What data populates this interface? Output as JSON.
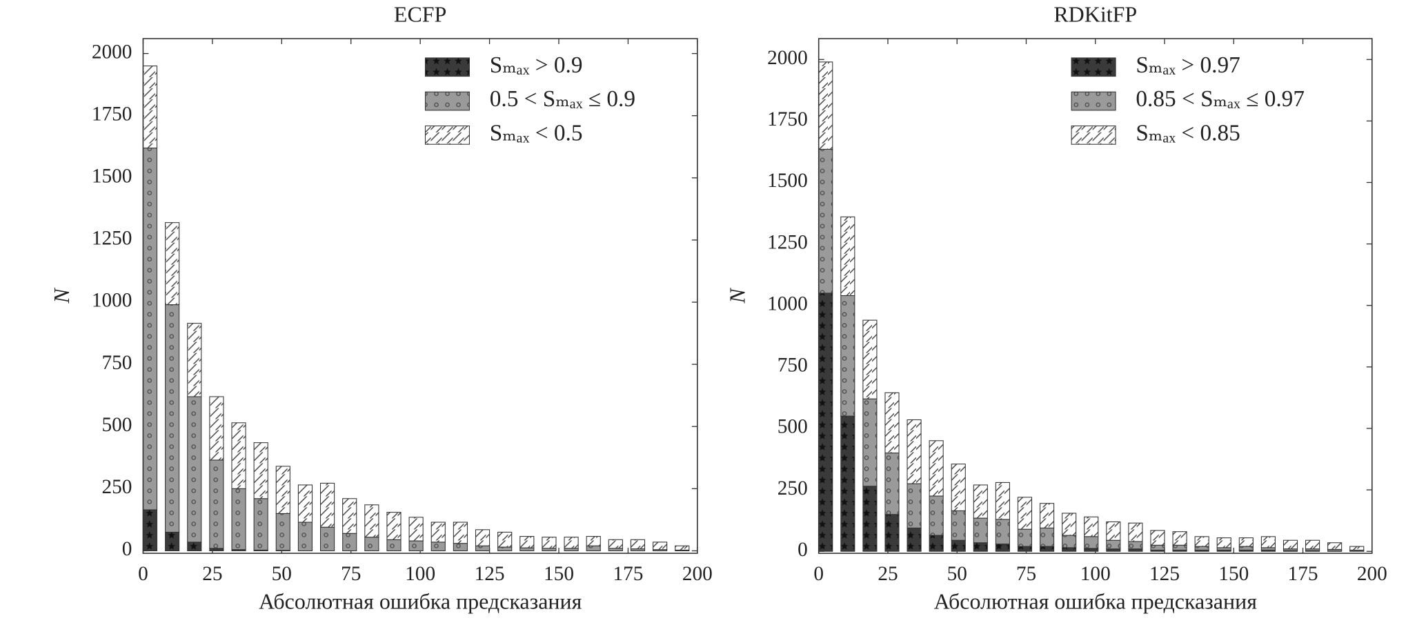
{
  "chart_data": [
    {
      "type": "bar",
      "stacked": true,
      "title": "ECFP",
      "xlabel": "Абсолютная ошибка предсказания",
      "ylabel": "N",
      "x": [
        0,
        8,
        16,
        24,
        32,
        40,
        48,
        56,
        64,
        72,
        80,
        88,
        96,
        104,
        112,
        120,
        128,
        136,
        144,
        152,
        160,
        168,
        176,
        184,
        192
      ],
      "series": [
        {
          "name": "Sₘₐₓ > 0.9",
          "color": "#3a3a3a",
          "values": [
            165,
            75,
            35,
            10,
            5,
            3,
            2,
            0,
            0,
            0,
            0,
            0,
            0,
            0,
            0,
            0,
            0,
            0,
            0,
            0,
            0,
            0,
            0,
            0,
            0
          ]
        },
        {
          "name": "0.5 < Sₘₐₓ ≤ 0.9",
          "color": "#9a9a9a",
          "values": [
            1455,
            915,
            585,
            355,
            245,
            207,
            148,
            115,
            95,
            70,
            55,
            45,
            40,
            35,
            30,
            20,
            15,
            12,
            10,
            10,
            20,
            10,
            8,
            5,
            3
          ]
        },
        {
          "name": "Sₘₐₓ < 0.5",
          "color": "#ffffff",
          "values": [
            330,
            330,
            295,
            255,
            265,
            225,
            190,
            150,
            177,
            140,
            130,
            110,
            95,
            80,
            85,
            65,
            60,
            46,
            45,
            45,
            38,
            35,
            37,
            30,
            17
          ]
        }
      ],
      "xlim": [
        0,
        200
      ],
      "ylim": [
        -10,
        2060
      ],
      "xticks": [
        0,
        25,
        50,
        75,
        100,
        125,
        150,
        175,
        200
      ],
      "yticks": [
        0,
        250,
        500,
        750,
        1000,
        1250,
        1500,
        1750,
        2000
      ],
      "grid": false,
      "legend": "upper right"
    },
    {
      "type": "bar",
      "stacked": true,
      "title": "RDKitFP",
      "xlabel": "Абсолютная ошибка предсказания",
      "ylabel": "N",
      "x": [
        0,
        8,
        16,
        24,
        32,
        40,
        48,
        56,
        64,
        72,
        80,
        88,
        96,
        104,
        112,
        120,
        128,
        136,
        144,
        152,
        160,
        168,
        176,
        184,
        192
      ],
      "series": [
        {
          "name": "Sₘₐₓ > 0.97",
          "color": "#3a3a3a",
          "values": [
            1050,
            550,
            265,
            150,
            95,
            65,
            45,
            35,
            30,
            20,
            20,
            15,
            12,
            10,
            10,
            5,
            5,
            5,
            5,
            5,
            5,
            3,
            3,
            2,
            1
          ]
        },
        {
          "name": "0.85 < Sₘₐₓ ≤ 0.97",
          "color": "#9a9a9a",
          "values": [
            585,
            490,
            355,
            250,
            180,
            160,
            120,
            100,
            100,
            70,
            75,
            50,
            48,
            35,
            30,
            20,
            20,
            15,
            10,
            15,
            10,
            7,
            7,
            6,
            4
          ]
        },
        {
          "name": "Sₘₐₓ < 0.85",
          "color": "#ffffff",
          "values": [
            355,
            320,
            320,
            245,
            260,
            225,
            190,
            135,
            150,
            130,
            100,
            90,
            80,
            75,
            75,
            60,
            55,
            40,
            40,
            35,
            45,
            35,
            35,
            27,
            15
          ]
        }
      ],
      "xlim": [
        0,
        200
      ],
      "ylim": [
        -8,
        2085
      ],
      "xticks": [
        0,
        25,
        50,
        75,
        100,
        125,
        150,
        175,
        200
      ],
      "yticks": [
        0,
        250,
        500,
        750,
        1000,
        1250,
        1500,
        1750,
        2000
      ],
      "grid": false,
      "legend": "upper right"
    }
  ]
}
